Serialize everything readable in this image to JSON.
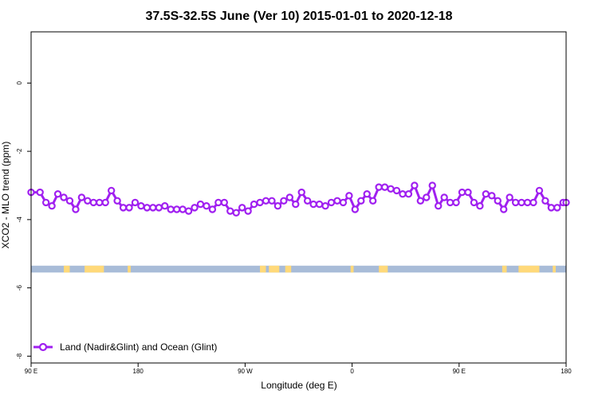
{
  "chart_data": {
    "type": "line",
    "title": "37.5S-32.5S June (Ver 10)   2015-01-01 to 2020-12-18",
    "xlabel": "Longitude (deg E)",
    "ylabel": "XCO2 - MLO trend (ppm)",
    "xlim": [
      90,
      450
    ],
    "ylim": [
      -8.2,
      1.5
    ],
    "x_ticks": [
      90,
      162,
      234,
      306,
      378,
      450
    ],
    "x_tick_labels": [
      "90 E",
      "180",
      "90 W",
      "0",
      "90 E",
      "180"
    ],
    "y_ticks": [
      0,
      -2,
      -4,
      -6,
      -8
    ],
    "y_tick_labels": [
      "0",
      "-2",
      "-4",
      "-6",
      "-8"
    ],
    "grid": false,
    "legend": "bottom-left",
    "colors": {
      "series": "#a020f0",
      "ocean": "#a8bcd8",
      "land": "#ffd97a"
    },
    "map_strip": {
      "y_top": -5.35,
      "y_bottom": -5.55,
      "land_segments": [
        [
          112,
          116
        ],
        [
          126,
          139
        ],
        [
          155,
          157
        ],
        [
          244,
          248
        ],
        [
          250,
          257
        ],
        [
          261,
          265
        ],
        [
          305,
          307
        ],
        [
          324,
          330
        ],
        [
          407,
          410
        ],
        [
          418,
          432
        ],
        [
          441,
          443
        ]
      ]
    },
    "series": [
      {
        "name": "Land (Nadir&Glint) and Ocean (Glint)",
        "x": [
          90,
          96,
          100,
          104,
          108,
          112,
          116,
          120,
          124,
          128,
          132,
          136,
          140,
          144,
          148,
          152,
          156,
          160,
          164,
          168,
          172,
          176,
          180,
          184,
          188,
          192,
          196,
          200,
          204,
          208,
          212,
          216,
          220,
          224,
          228,
          232,
          236,
          240,
          244,
          248,
          252,
          256,
          260,
          264,
          268,
          272,
          276,
          280,
          284,
          288,
          292,
          296,
          300,
          304,
          308,
          312,
          316,
          320,
          324,
          328,
          332,
          336,
          340,
          344,
          348,
          352,
          356,
          360,
          364,
          368,
          372,
          376,
          380,
          384,
          388,
          392,
          396,
          400,
          404,
          408,
          412,
          416,
          420,
          424,
          428,
          432,
          436,
          440,
          444,
          448,
          450
        ],
        "y": [
          -3.2,
          -3.2,
          -3.5,
          -3.6,
          -3.25,
          -3.35,
          -3.45,
          -3.7,
          -3.35,
          -3.45,
          -3.5,
          -3.5,
          -3.5,
          -3.15,
          -3.45,
          -3.65,
          -3.65,
          -3.5,
          -3.6,
          -3.65,
          -3.65,
          -3.65,
          -3.6,
          -3.7,
          -3.7,
          -3.7,
          -3.75,
          -3.65,
          -3.55,
          -3.6,
          -3.7,
          -3.5,
          -3.5,
          -3.75,
          -3.8,
          -3.65,
          -3.75,
          -3.55,
          -3.5,
          -3.45,
          -3.45,
          -3.6,
          -3.45,
          -3.35,
          -3.55,
          -3.2,
          -3.45,
          -3.55,
          -3.55,
          -3.6,
          -3.5,
          -3.45,
          -3.5,
          -3.3,
          -3.7,
          -3.45,
          -3.25,
          -3.45,
          -3.05,
          -3.05,
          -3.1,
          -3.15,
          -3.25,
          -3.25,
          -3.0,
          -3.45,
          -3.35,
          -3.0,
          -3.6,
          -3.35,
          -3.5,
          -3.5,
          -3.2,
          -3.2,
          -3.5,
          -3.6,
          -3.25,
          -3.3,
          -3.45,
          -3.7,
          -3.35,
          -3.5,
          -3.5,
          -3.5,
          -3.5,
          -3.15,
          -3.45,
          -3.65,
          -3.65,
          -3.5,
          -3.5
        ]
      }
    ]
  }
}
